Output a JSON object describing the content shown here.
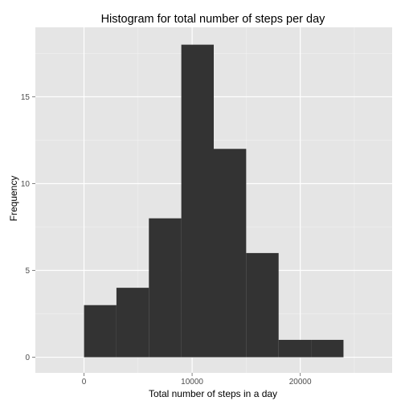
{
  "chart_data": {
    "type": "bar",
    "title": "Histogram for total number of steps per day",
    "xlabel": "Total number of steps in a day",
    "ylabel": "Frequency",
    "bins": [
      {
        "x0": 0,
        "x1": 3000,
        "count": 3
      },
      {
        "x0": 3000,
        "x1": 6000,
        "count": 4
      },
      {
        "x0": 6000,
        "x1": 9000,
        "count": 8
      },
      {
        "x0": 9000,
        "x1": 12000,
        "count": 18
      },
      {
        "x0": 12000,
        "x1": 15000,
        "count": 12
      },
      {
        "x0": 15000,
        "x1": 18000,
        "count": 6
      },
      {
        "x0": 18000,
        "x1": 21000,
        "count": 1
      },
      {
        "x0": 21000,
        "x1": 24000,
        "count": 1
      }
    ],
    "xlim": [
      -4500,
      28500
    ],
    "ylim": [
      -0.9,
      19.0
    ],
    "xticks": [
      0,
      10000,
      20000
    ],
    "xtick_labels": [
      "0",
      "10000",
      "20000"
    ],
    "yticks": [
      0,
      5,
      10,
      15
    ],
    "ytick_labels": [
      "0",
      "5",
      "10",
      "15"
    ],
    "grid": true,
    "colors": {
      "panel": "#e5e5e5",
      "grid_major": "#ffffff",
      "grid_minor": "#f2f2f2",
      "bar": "#333333"
    }
  }
}
